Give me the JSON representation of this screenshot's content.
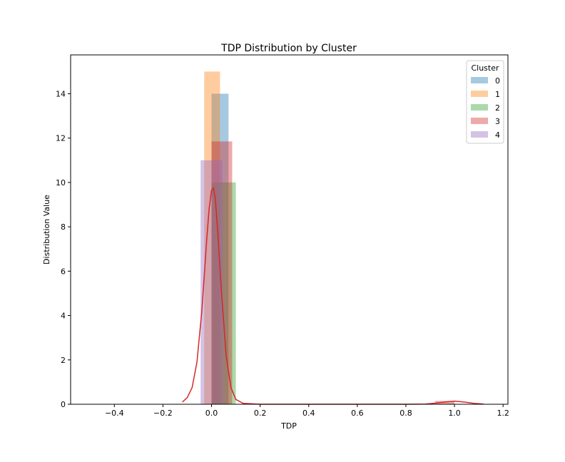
{
  "chart_data": {
    "type": "bar",
    "title": "TDP Distribution by Cluster",
    "xlabel": "TDP",
    "ylabel": "Distribution Value",
    "xlim": [
      -0.58,
      1.22
    ],
    "ylim": [
      0,
      15.75
    ],
    "xticks": [
      -0.4,
      -0.2,
      0.0,
      0.2,
      0.4,
      0.6,
      0.8,
      1.0,
      1.2
    ],
    "yticks": [
      0,
      2,
      4,
      6,
      8,
      10,
      12,
      14
    ],
    "grid": false,
    "legend": {
      "title": "Cluster",
      "position": "top-right"
    },
    "series": [
      {
        "name": "0",
        "color": "#1f77b4",
        "opacity": 0.4,
        "bars": [
          {
            "x0": 0.0,
            "x1": 0.07,
            "value": 14.0
          }
        ]
      },
      {
        "name": "1",
        "color": "#ff7f0e",
        "opacity": 0.4,
        "bars": [
          {
            "x0": -0.03,
            "x1": 0.035,
            "value": 15.0
          }
        ]
      },
      {
        "name": "2",
        "color": "#2ca02c",
        "opacity": 0.4,
        "bars": [
          {
            "x0": 0.0,
            "x1": 0.1,
            "value": 10.0
          }
        ]
      },
      {
        "name": "3",
        "color": "#d62728",
        "opacity": 0.4,
        "bars": [
          {
            "x0": 0.0,
            "x1": 0.085,
            "value": 11.85
          },
          {
            "x0": 0.92,
            "x1": 1.0,
            "value": 0.15
          }
        ]
      },
      {
        "name": "4",
        "color": "#9467bd",
        "opacity": 0.4,
        "bars": [
          {
            "x0": -0.045,
            "x1": 0.045,
            "value": 11.0
          }
        ]
      }
    ],
    "kde": {
      "series": "3",
      "color": "#d62728",
      "points": [
        [
          -0.12,
          0.1
        ],
        [
          -0.1,
          0.3
        ],
        [
          -0.08,
          0.75
        ],
        [
          -0.06,
          1.9
        ],
        [
          -0.04,
          4.2
        ],
        [
          -0.02,
          7.4
        ],
        [
          -0.01,
          8.8
        ],
        [
          0.0,
          9.65
        ],
        [
          0.008,
          9.75
        ],
        [
          0.015,
          9.3
        ],
        [
          0.025,
          7.9
        ],
        [
          0.04,
          5.2
        ],
        [
          0.06,
          2.2
        ],
        [
          0.08,
          0.75
        ],
        [
          0.1,
          0.22
        ],
        [
          0.13,
          0.04
        ],
        [
          0.2,
          0.0
        ],
        [
          0.4,
          0.0
        ],
        [
          0.6,
          0.0
        ],
        [
          0.8,
          0.0
        ],
        [
          0.88,
          0.01
        ],
        [
          0.92,
          0.05
        ],
        [
          0.96,
          0.1
        ],
        [
          1.0,
          0.14
        ],
        [
          1.04,
          0.1
        ],
        [
          1.08,
          0.04
        ],
        [
          1.12,
          0.01
        ]
      ]
    }
  }
}
